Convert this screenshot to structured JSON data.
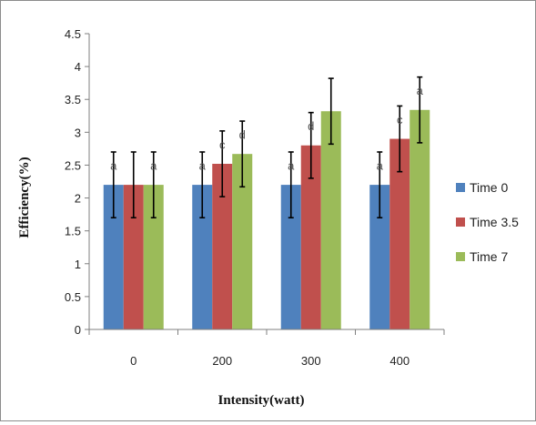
{
  "chart_data": {
    "type": "bar",
    "title": "",
    "xlabel": "Intensity(watt)",
    "ylabel": "Efficiency(%)",
    "categories": [
      "0",
      "200",
      "300",
      "400"
    ],
    "ylim": [
      0,
      4.5
    ],
    "yticks": [
      "0",
      "0.5",
      "1",
      "1.5",
      "2",
      "2.5",
      "3",
      "3.5",
      "4",
      "4.5"
    ],
    "grid": false,
    "legend_position": "right",
    "series": [
      {
        "name": "Time 0",
        "color": "#4f81bd",
        "values": [
          2.2,
          2.2,
          2.2,
          2.2
        ],
        "errors": [
          0.5,
          0.5,
          0.5,
          0.5
        ],
        "labels": [
          "a",
          "a",
          "a",
          "a"
        ]
      },
      {
        "name": "Time 3.5",
        "color": "#c0504d",
        "values": [
          2.2,
          2.52,
          2.8,
          2.9
        ],
        "errors": [
          0.5,
          0.5,
          0.5,
          0.5
        ],
        "labels": [
          "",
          "c",
          "d",
          "c"
        ]
      },
      {
        "name": "Time 7",
        "color": "#9bbb59",
        "values": [
          2.2,
          2.67,
          3.32,
          3.34
        ],
        "errors": [
          0.5,
          0.5,
          0.5,
          0.5
        ],
        "labels": [
          "a",
          "d",
          "",
          "a"
        ]
      }
    ]
  }
}
